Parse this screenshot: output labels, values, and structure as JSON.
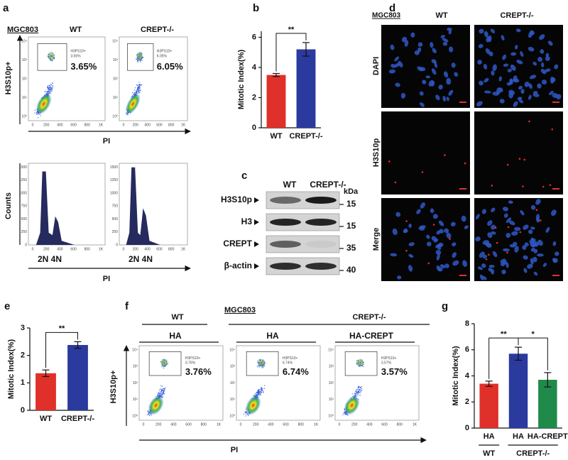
{
  "panel_labels": [
    "a",
    "b",
    "c",
    "d",
    "e",
    "f",
    "g"
  ],
  "panel_a": {
    "cell_line": "MGC803",
    "columns": [
      "WT",
      "CREPT-/-"
    ],
    "dot_y_label": "H3S10p+",
    "x_label": "PI",
    "gate_label": "H3PS10+",
    "percents": [
      "3.65%",
      "6.05%"
    ],
    "xticks": [
      "0",
      "200",
      "400",
      "600",
      "800",
      "1K"
    ],
    "dot_yticks": [
      "10⁰",
      "10¹",
      "10²",
      "10³",
      "10⁴"
    ],
    "hist_y_label": "Counts",
    "hist_yticks": [
      "0",
      "250",
      "500",
      "750",
      "1000",
      "1250",
      "1500"
    ],
    "ploidy": "2N 4N"
  },
  "panel_c": {
    "columns": [
      "WT",
      "CREPT-/-"
    ],
    "unit": "kDa",
    "rows": [
      {
        "label": "H3S10p",
        "kda": "15"
      },
      {
        "label": "H3",
        "kda": "15"
      },
      {
        "label": "CREPT",
        "kda": "35"
      },
      {
        "label": "β-actin",
        "kda": "40"
      }
    ]
  },
  "panel_d": {
    "cell_line": "MGC803",
    "columns": [
      "WT",
      "CREPT-/-"
    ],
    "rows": [
      "DAPI",
      "H3S10p",
      "Merge"
    ]
  },
  "panel_f": {
    "cell_line": "MGC803",
    "groups": [
      "WT",
      "CREPT-/-"
    ],
    "columns": [
      "HA",
      "HA",
      "HA-CREPT"
    ],
    "y_label": "H3S10p+",
    "x_label": "PI",
    "gate_label": "H3PS10+",
    "percents": [
      "3.76%",
      "6.74%",
      "3.57%"
    ]
  },
  "chart_data": [
    {
      "type": "bar",
      "y_label": "Mitotic Index(%)",
      "categories": [
        "WT",
        "CREPT-/-"
      ],
      "values": [
        3.5,
        5.2
      ],
      "errors": [
        0.1,
        0.45
      ],
      "colors": [
        "#e0302a",
        "#2b3a9e"
      ],
      "ylim": [
        0,
        6.4
      ],
      "yticks": [
        0,
        2,
        4,
        6
      ],
      "significance": [
        "**"
      ]
    },
    {
      "type": "bar",
      "y_label": "Mitotic Index(%)",
      "categories": [
        "WT",
        "CREPT-/-"
      ],
      "values": [
        1.35,
        2.38
      ],
      "errors": [
        0.12,
        0.12
      ],
      "colors": [
        "#e0302a",
        "#2b3a9e"
      ],
      "ylim": [
        0,
        3
      ],
      "yticks": [
        0,
        1,
        2,
        3
      ],
      "significance": [
        "**"
      ]
    },
    {
      "type": "bar",
      "y_label": "Mitotic Index(%)",
      "categories": [
        "HA",
        "HA",
        "HA-CREPT"
      ],
      "values": [
        3.4,
        5.7,
        3.7
      ],
      "errors": [
        0.2,
        0.5,
        0.55
      ],
      "colors": [
        "#e0302a",
        "#2b3a9e",
        "#1f8a4a"
      ],
      "ylim": [
        0,
        8
      ],
      "yticks": [
        0,
        2,
        4,
        6,
        8
      ],
      "significance": [
        "**",
        "*"
      ],
      "groups": [
        "WT",
        "CREPT-/-"
      ]
    }
  ]
}
